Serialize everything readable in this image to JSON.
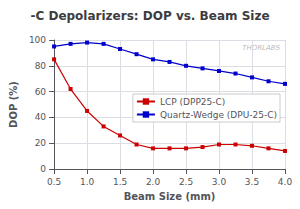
{
  "chart_data": {
    "type": "line",
    "title": "-C Depolarizers: DOP vs. Beam Size",
    "xlabel": "Beam Size (mm)",
    "ylabel": "DOP (%)",
    "x": [
      0.5,
      0.75,
      1.0,
      1.25,
      1.5,
      1.75,
      2.0,
      2.25,
      2.5,
      2.75,
      3.0,
      3.25,
      3.5,
      3.75,
      4.0
    ],
    "series": [
      {
        "name": "LCP (DPP25-C)",
        "color": "#cc0000",
        "marker": "square",
        "values": [
          85,
          62,
          45,
          33,
          26,
          19,
          16,
          16,
          16,
          17,
          19,
          19,
          18,
          16,
          14
        ]
      },
      {
        "name": "Quartz-Wedge (DPU-25-C)",
        "color": "#0000cc",
        "marker": "square",
        "values": [
          95,
          97,
          98,
          97,
          93,
          89,
          85,
          83,
          80,
          78,
          76,
          74,
          71,
          68,
          66
        ]
      }
    ],
    "xlim": [
      0.5,
      4.0
    ],
    "ylim": [
      0,
      100
    ],
    "xticks": [
      0.5,
      {
        "value": 1.0,
        "label": "1.0"
      },
      1.5,
      {
        "value": 2.0,
        "label": "2.0"
      },
      2.5,
      {
        "value": 3.0,
        "label": "3.0"
      },
      3.5,
      {
        "value": 4.0,
        "label": "4.0"
      }
    ],
    "yticks": [
      0,
      20,
      40,
      60,
      80,
      100
    ],
    "grid": true,
    "legend": "center",
    "annotations": [
      "THORLABS"
    ]
  }
}
